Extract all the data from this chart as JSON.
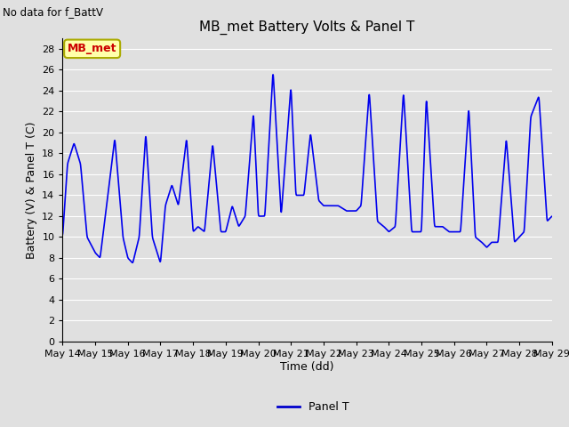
{
  "title": "MB_met Battery Volts & Panel T",
  "no_data_label": "No data for f_BattV",
  "ylabel": "Battery (V) & Panel T (C)",
  "xlabel": "Time (dd)",
  "legend_label": "Panel T",
  "legend_color": "#0000cc",
  "line_color": "#0000ee",
  "ylim": [
    0,
    29
  ],
  "yticks": [
    0,
    2,
    4,
    6,
    8,
    10,
    12,
    14,
    16,
    18,
    20,
    22,
    24,
    26,
    28
  ],
  "xtick_labels": [
    "May 14",
    "May 15",
    "May 16",
    "May 17",
    "May 18",
    "May 19",
    "May 20",
    "May 21",
    "May 22",
    "May 23",
    "May 24",
    "May 25",
    "May 26",
    "May 27",
    "May 28",
    "May 29"
  ],
  "bg_color": "#e0e0e0",
  "plot_bg_color": "#e0e0e0",
  "grid_color": "#ffffff",
  "inset_label": "MB_met",
  "inset_label_color": "#cc0000",
  "inset_box_facecolor": "#ffffaa",
  "inset_box_edgecolor": "#aaaa00",
  "keypoints_x": [
    0,
    0.15,
    0.35,
    0.55,
    0.75,
    1.0,
    1.15,
    1.35,
    1.6,
    1.85,
    2.0,
    2.15,
    2.35,
    2.55,
    2.75,
    3.0,
    3.15,
    3.35,
    3.55,
    3.8,
    4.0,
    4.15,
    4.35,
    4.6,
    4.85,
    5.0,
    5.2,
    5.4,
    5.6,
    5.85,
    6.0,
    6.2,
    6.45,
    6.7,
    7.0,
    7.15,
    7.4,
    7.6,
    7.85,
    8.0,
    8.2,
    8.45,
    8.7,
    9.0,
    9.15,
    9.4,
    9.65,
    9.85,
    10.0,
    10.2,
    10.45,
    10.7,
    11.0,
    11.15,
    11.4,
    11.65,
    11.85,
    12.0,
    12.2,
    12.45,
    12.65,
    12.85,
    13.0,
    13.15,
    13.35,
    13.6,
    13.85,
    14.0,
    14.15,
    14.35,
    14.6,
    14.85,
    15.0
  ],
  "keypoints_y": [
    10,
    17,
    19,
    17,
    10,
    8.5,
    8,
    13,
    19.5,
    10,
    8,
    7.5,
    10,
    20,
    10,
    7.5,
    13,
    15,
    13,
    19.5,
    10.5,
    11,
    10.5,
    19,
    10.5,
    10.5,
    13,
    11,
    12,
    22,
    12,
    12,
    26,
    12,
    24.5,
    14,
    14,
    20,
    13.5,
    13,
    13,
    13,
    12.5,
    12.5,
    13,
    24,
    11.5,
    11,
    10.5,
    11,
    24,
    10.5,
    10.5,
    23.5,
    11,
    11,
    10.5,
    10.5,
    10.5,
    22.5,
    10,
    9.5,
    9.0,
    9.5,
    9.5,
    19.5,
    9.5,
    10,
    10.5,
    21.5,
    23.5,
    11.5,
    12
  ]
}
